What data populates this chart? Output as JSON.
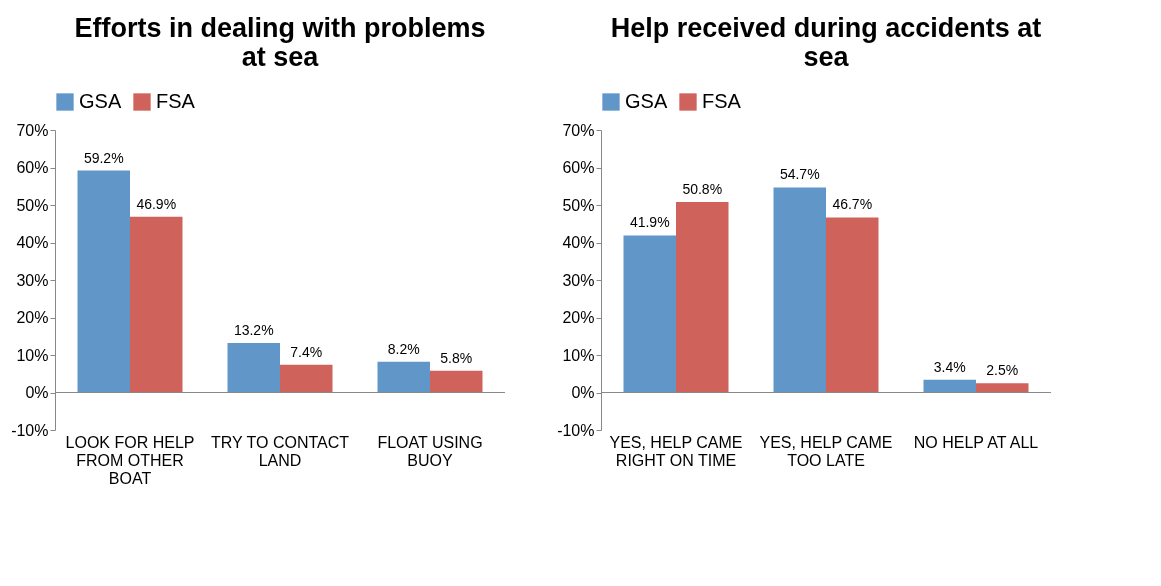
{
  "chart_data": [
    {
      "type": "bar",
      "title": "Efforts in dealing with problems at sea",
      "categories": [
        "LOOK FOR HELP FROM OTHER BOAT",
        "TRY TO CONTACT LAND",
        "FLOAT USING BUOY"
      ],
      "series": [
        {
          "name": "GSA",
          "color": "#6096c8",
          "values": [
            59.2,
            13.2,
            8.2
          ]
        },
        {
          "name": "FSA",
          "color": "#d0625c",
          "values": [
            46.9,
            7.4,
            5.8
          ]
        }
      ],
      "ylim": [
        -10,
        70
      ],
      "yticks": [
        {
          "value": -10,
          "label": "-10%"
        },
        {
          "value": 0,
          "label": "0%"
        },
        {
          "value": 10,
          "label": "10%"
        },
        {
          "value": 20,
          "label": "20%"
        },
        {
          "value": 30,
          "label": "30%"
        },
        {
          "value": 40,
          "label": "40%"
        },
        {
          "value": 50,
          "label": "50%"
        },
        {
          "value": 60,
          "label": "60%"
        },
        {
          "value": 70,
          "label": "70%"
        }
      ],
      "value_labels": [
        [
          "59.2%",
          "13.2%",
          "8.2%"
        ],
        [
          "46.9%",
          "7.4%",
          "5.8%"
        ]
      ],
      "legend": "top",
      "grid": false
    },
    {
      "type": "bar",
      "title": "Help received during accidents at sea",
      "categories": [
        "YES, HELP CAME RIGHT ON TIME",
        "YES, HELP CAME TOO LATE",
        "NO HELP AT ALL"
      ],
      "series": [
        {
          "name": "GSA",
          "color": "#6096c8",
          "values": [
            41.9,
            54.7,
            3.4
          ]
        },
        {
          "name": "FSA",
          "color": "#d0625c",
          "values": [
            50.8,
            46.7,
            2.5
          ]
        }
      ],
      "ylim": [
        -10,
        70
      ],
      "yticks": [
        {
          "value": -10,
          "label": "-10%"
        },
        {
          "value": 0,
          "label": "0%"
        },
        {
          "value": 10,
          "label": "10%"
        },
        {
          "value": 20,
          "label": "20%"
        },
        {
          "value": 30,
          "label": "30%"
        },
        {
          "value": 40,
          "label": "40%"
        },
        {
          "value": 50,
          "label": "50%"
        },
        {
          "value": 60,
          "label": "60%"
        },
        {
          "value": 70,
          "label": "70%"
        }
      ],
      "value_labels": [
        [
          "41.9%",
          "54.7%",
          "3.4%"
        ],
        [
          "50.8%",
          "46.7%",
          "2.5%"
        ]
      ],
      "legend": "top",
      "grid": false
    }
  ]
}
